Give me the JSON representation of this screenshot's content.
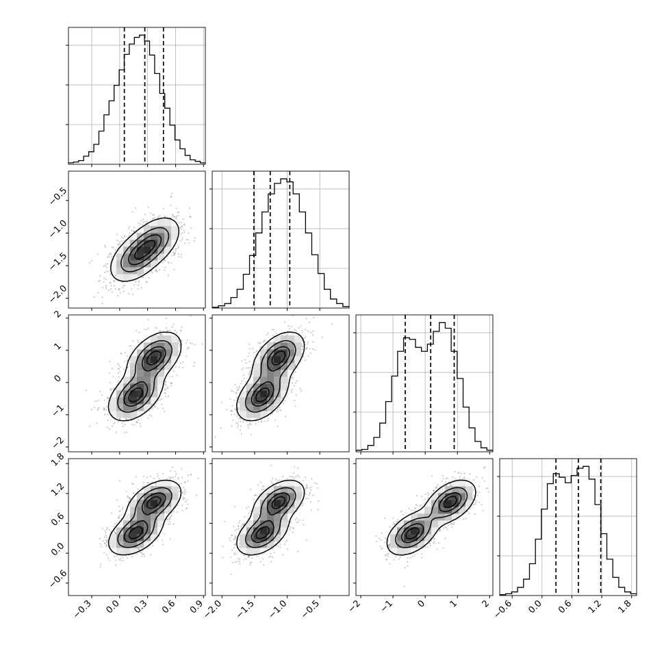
{
  "chart_data": {
    "type": "corner",
    "title": "",
    "n_params": 4,
    "param_ranges": [
      [
        -0.55,
        0.92
      ],
      [
        -2.15,
        -0.05
      ],
      [
        -2.15,
        2.1
      ],
      [
        -0.85,
        1.9
      ]
    ],
    "axis_ticks": [
      {
        "values": [
          -0.3,
          0.0,
          0.3,
          0.6,
          0.9
        ],
        "labels": [
          "−0.3",
          "0.0",
          "0.3",
          "0.6",
          "0.9"
        ]
      },
      {
        "values": [
          -2.0,
          -1.5,
          -1.0,
          -0.5
        ],
        "labels": [
          "−2.0",
          "−1.5",
          "−1.0",
          "−0.5"
        ]
      },
      {
        "values": [
          -2,
          -1,
          0,
          1,
          2
        ],
        "labels": [
          "−2",
          "−1",
          "0",
          "1",
          "2"
        ]
      },
      {
        "values": [
          -0.6,
          0.0,
          0.6,
          1.2,
          1.8
        ],
        "labels": [
          "−0.6",
          "0.0",
          "0.6",
          "1.2",
          "1.8"
        ]
      }
    ],
    "grid": true,
    "quantiles": [
      [
        0.05,
        0.27,
        0.47
      ],
      [
        -1.51,
        -1.26,
        -0.96
      ],
      [
        -0.62,
        0.17,
        0.9
      ],
      [
        0.28,
        0.73,
        1.18
      ]
    ],
    "histograms": [
      {
        "edges_range": [
          -0.55,
          0.92
        ],
        "counts": [
          2,
          3,
          5,
          11,
          17,
          27,
          45,
          67,
          86,
          107,
          128,
          149,
          163,
          172,
          175,
          167,
          148,
          123,
          96,
          76,
          53,
          33,
          21,
          12,
          6,
          4,
          2
        ]
      },
      {
        "edges_range": [
          -2.15,
          -0.05
        ],
        "counts": [
          1,
          3,
          6,
          14,
          25,
          45,
          70,
          100,
          128,
          152,
          166,
          172,
          168,
          152,
          128,
          100,
          71,
          46,
          25,
          12,
          6,
          2
        ]
      },
      {
        "edges_range": [
          -2.15,
          2.1
        ],
        "counts": [
          2,
          3,
          8,
          18,
          36,
          63,
          95,
          126,
          143,
          141,
          131,
          126,
          135,
          151,
          162,
          155,
          126,
          92,
          56,
          30,
          13,
          5,
          2
        ]
      },
      {
        "edges_range": [
          -0.85,
          1.9
        ],
        "counts": [
          1,
          2,
          4,
          9,
          18,
          35,
          62,
          95,
          123,
          134,
          130,
          124,
          132,
          140,
          142,
          128,
          100,
          68,
          40,
          20,
          9,
          4,
          2
        ]
      }
    ],
    "mixture_components": [
      {
        "weight": 0.5,
        "mean": [
          0.17,
          -1.38,
          -0.4,
          0.4
        ],
        "sd": [
          0.14,
          0.19,
          0.38,
          0.21
        ]
      },
      {
        "weight": 0.5,
        "mean": [
          0.37,
          -1.13,
          0.78,
          1.03
        ],
        "sd": [
          0.14,
          0.19,
          0.38,
          0.21
        ]
      }
    ],
    "correlation": 0.45,
    "contour_levels": [
      0.118,
      0.393,
      0.675,
      0.865
    ]
  }
}
